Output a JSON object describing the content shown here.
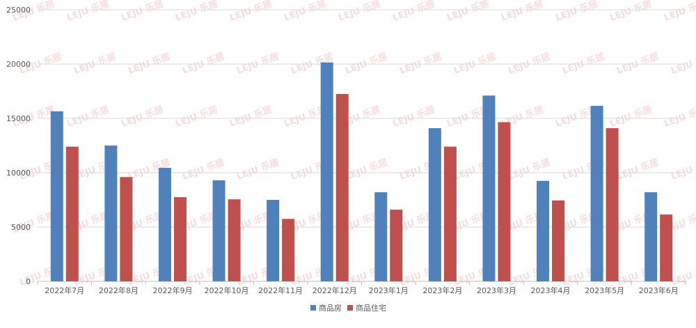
{
  "chart_data": {
    "type": "bar",
    "categories": [
      "2022年7月",
      "2022年8月",
      "2022年9月",
      "2022年10月",
      "2022年11月",
      "2022年12月",
      "2023年1月",
      "2023年2月",
      "2023年3月",
      "2023年4月",
      "2023年5月",
      "2023年6月"
    ],
    "series": [
      {
        "name": "商品房",
        "color": "#4f81bd",
        "values": [
          15650,
          12500,
          10450,
          9300,
          7500,
          20150,
          8200,
          14100,
          17100,
          9250,
          16150,
          8200
        ]
      },
      {
        "name": "商品住宅",
        "color": "#c0504d",
        "values": [
          12400,
          9600,
          7750,
          7550,
          5750,
          17250,
          6600,
          12400,
          14650,
          7450,
          14100,
          6150
        ]
      }
    ],
    "ylim": [
      0,
      25000
    ],
    "yticks": [
      0,
      5000,
      10000,
      15000,
      20000,
      25000
    ],
    "grid": true,
    "legend_position": "bottom",
    "watermark": "LEJU 乐居"
  }
}
